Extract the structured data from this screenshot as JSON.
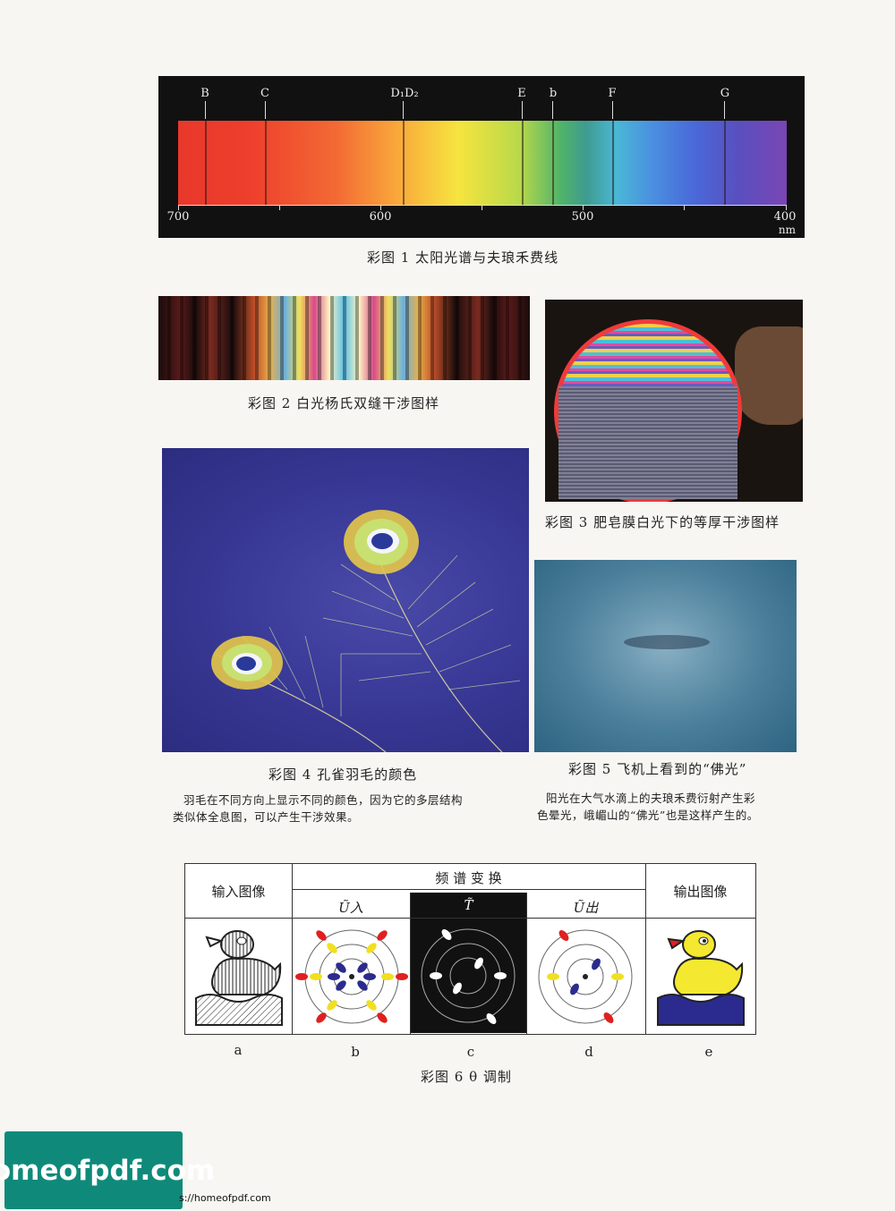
{
  "fig1": {
    "caption": "彩图 1  太阳光谱与夫琅禾费线",
    "lines": [
      "B",
      "C",
      "D₁D₂",
      "E",
      "b",
      "F",
      "G"
    ],
    "ticks": [
      "700",
      "600",
      "500",
      "400"
    ],
    "unit": "nm"
  },
  "fig2": {
    "caption": "彩图 2    白光杨氏双缝干涉图样"
  },
  "fig3": {
    "caption": "彩图 3  肥皂膜白光下的等厚干涉图样"
  },
  "fig4": {
    "caption": "彩图 4    孔雀羽毛的颜色",
    "desc1": "羽毛在不同方向上显示不同的颜色，因为它的多层结构",
    "desc2": "类似体全息图，可以产生干涉效果。"
  },
  "fig5": {
    "caption": "彩图 5  飞机上看到的“佛光”",
    "desc1": "阳光在大气水滴上的夫琅禾费衍射产生彩",
    "desc2": "色晕光，峨嵋山的“佛光”也是这样产生的。"
  },
  "fig6": {
    "input_label": "输入图像",
    "spectrum_label": "频    谱    变    换",
    "output_label": "输出图像",
    "u_in": "Ũ入",
    "t": "T̃",
    "u_out": "Ũ出",
    "sub_a": "a",
    "sub_b": "b",
    "sub_c": "c",
    "sub_d": "d",
    "sub_e": "e",
    "caption": "彩图 6    θ 调制"
  },
  "watermark": {
    "logo": "homeofpdf.com",
    "url": "s://homeofpdf.com"
  }
}
